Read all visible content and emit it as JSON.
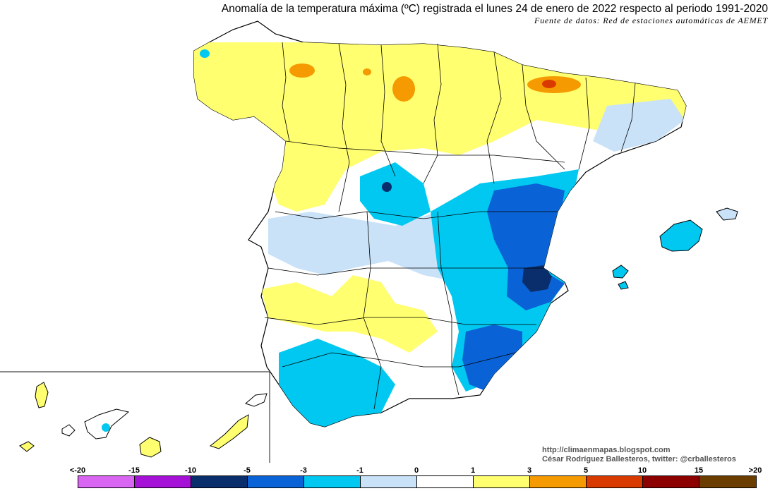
{
  "title": "Anomalía de la temperatura máxima (ºC) registrada el lunes 24 de enero de 2022 respecto al periodo 1991-2020",
  "subtitle": "Fuente de datos: Red de estaciones automáticas de AEMET",
  "credits": {
    "blog": "http://climaenmapas.blogspot.com",
    "author": "César Rodríguez Ballesteros, twitter: @crballesteros"
  },
  "legend": {
    "ticks": [
      "<-20",
      "-15",
      "-10",
      "-5",
      "-3",
      "-1",
      "0",
      "1",
      "3",
      "5",
      "10",
      "15",
      ">20"
    ],
    "colors": [
      "#d966f2",
      "#a511d6",
      "#0a2e6b",
      "#0a63d6",
      "#00c8f0",
      "#c9e2f8",
      "#ffffff",
      "#ffff70",
      "#f59a00",
      "#d93a00",
      "#8c0000",
      "#6b3d00"
    ]
  },
  "map": {
    "region": "Spain",
    "inset": "Canary Islands",
    "palette": {
      "warm_mild": "#ffff70",
      "warm_strong": "#f59a00",
      "warm_extreme": "#d93a00",
      "neutral": "#ffffff",
      "cool_mild": "#c9e2f8",
      "cool": "#00c8f0",
      "cold": "#0a63d6",
      "very_cold": "#0a2e6b"
    }
  }
}
